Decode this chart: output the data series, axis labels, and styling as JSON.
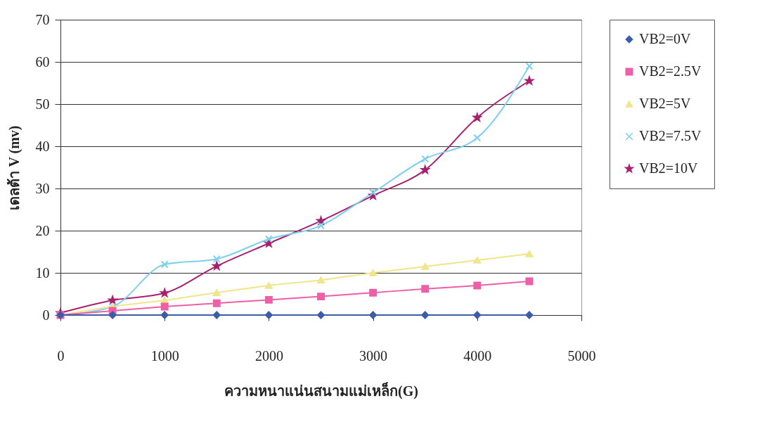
{
  "chart_data": {
    "type": "line",
    "xlabel": "ความหนาแน่นสนามแม่เหล็ก(G)",
    "ylabel": "เดลต้า V    (mv)",
    "x": [
      0,
      500,
      1000,
      1500,
      2000,
      2500,
      3000,
      3500,
      4000,
      4500
    ],
    "series": [
      {
        "name": "VB2=0V",
        "color": "#3d5ca8",
        "marker": "diamond",
        "values": [
          0,
          0,
          0,
          0,
          0,
          0,
          0,
          0,
          0,
          0
        ]
      },
      {
        "name": "VB2=2.5V",
        "color": "#ee5fa8",
        "marker": "square",
        "values": [
          0,
          1,
          2,
          2.8,
          3.6,
          4.4,
          5.3,
          6.2,
          7,
          8
        ]
      },
      {
        "name": "VB2=5V",
        "color": "#f0e58a",
        "marker": "triangle",
        "values": [
          0,
          2,
          3.5,
          5.3,
          7,
          8.3,
          10,
          11.5,
          13,
          14.5
        ]
      },
      {
        "name": "VB2=7.5V",
        "color": "#7fcfee",
        "marker": "cross",
        "values": [
          0,
          2,
          12,
          13.3,
          18,
          21.2,
          29,
          37,
          42,
          59
        ]
      },
      {
        "name": "VB2=10V",
        "color": "#a8206e",
        "marker": "star",
        "values": [
          0.5,
          3.5,
          5.2,
          11.6,
          17,
          22.3,
          28.3,
          34.4,
          46.8,
          55.5
        ]
      }
    ],
    "xlim": [
      0,
      5000
    ],
    "xticks": [
      0,
      1000,
      2000,
      3000,
      4000,
      5000
    ],
    "ylim": [
      0,
      70
    ],
    "yticks": [
      0,
      10,
      20,
      30,
      40,
      50,
      60,
      70
    ],
    "grid": "y",
    "legend": "right"
  }
}
